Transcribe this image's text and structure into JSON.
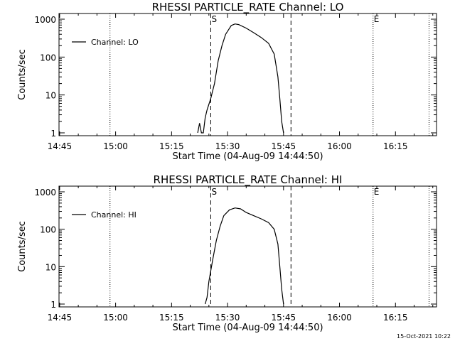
{
  "footer": {
    "timestamp": "15-Oct-2021 10:22"
  },
  "chart_data": [
    {
      "type": "line",
      "title": "RHESSI PARTICLE_RATE Channel: LO",
      "xlabel": "Start Time (04-Aug-09 14:44:50)",
      "ylabel": "Counts/sec",
      "xlim": [
        "14:44:50",
        "16:26:00"
      ],
      "ylim": [
        1,
        1000
      ],
      "yscale": "log",
      "xticks": [
        "14:45",
        "15:00",
        "15:15",
        "15:30",
        "15:45",
        "16:00",
        "16:15"
      ],
      "yticks": [
        "1",
        "10",
        "100",
        "1000"
      ],
      "legend": {
        "position": "top-left",
        "label": "Channel: LO"
      },
      "markers": [
        {
          "time": "15:25:30",
          "style": "dashed",
          "label": "S"
        },
        {
          "time": "15:47:00",
          "style": "dashed",
          "label": ""
        },
        {
          "time": "14:58:30",
          "style": "dotted",
          "label": ""
        },
        {
          "time": "16:09:00",
          "style": "dotted",
          "label": "E"
        },
        {
          "time": "16:24:00",
          "style": "dotted",
          "label": ""
        }
      ],
      "series": [
        {
          "name": "Channel: LO",
          "points": [
            [
              "15:22:00",
              1
            ],
            [
              "15:22:30",
              1.8
            ],
            [
              "15:23:00",
              1
            ],
            [
              "15:23:30",
              1
            ],
            [
              "15:24:00",
              2.5
            ],
            [
              "15:24:30",
              4
            ],
            [
              "15:25:30",
              8
            ],
            [
              "15:26:30",
              20
            ],
            [
              "15:27:30",
              80
            ],
            [
              "15:28:30",
              200
            ],
            [
              "15:29:30",
              400
            ],
            [
              "15:31:00",
              680
            ],
            [
              "15:32:00",
              750
            ],
            [
              "15:33:00",
              720
            ],
            [
              "15:35:00",
              580
            ],
            [
              "15:37:00",
              440
            ],
            [
              "15:39:00",
              330
            ],
            [
              "15:41:00",
              230
            ],
            [
              "15:42:30",
              120
            ],
            [
              "15:43:30",
              30
            ],
            [
              "15:44:00",
              8
            ],
            [
              "15:44:30",
              2
            ],
            [
              "15:45:00",
              1
            ]
          ]
        }
      ]
    },
    {
      "type": "line",
      "title": "RHESSI PARTICLE_RATE Channel: HI",
      "xlabel": "Start Time (04-Aug-09 14:44:50)",
      "ylabel": "Counts/sec",
      "xlim": [
        "14:44:50",
        "16:26:00"
      ],
      "ylim": [
        1,
        1000
      ],
      "yscale": "log",
      "xticks": [
        "14:45",
        "15:00",
        "15:15",
        "15:30",
        "15:45",
        "16:00",
        "16:15"
      ],
      "yticks": [
        "1",
        "10",
        "100",
        "1000"
      ],
      "legend": {
        "position": "top-left",
        "label": "Channel: HI"
      },
      "markers": [
        {
          "time": "15:25:30",
          "style": "dashed",
          "label": "S"
        },
        {
          "time": "15:47:00",
          "style": "dashed",
          "label": ""
        },
        {
          "time": "14:58:30",
          "style": "dotted",
          "label": ""
        },
        {
          "time": "16:09:00",
          "style": "dotted",
          "label": "E"
        },
        {
          "time": "16:24:00",
          "style": "dotted",
          "label": ""
        }
      ],
      "series": [
        {
          "name": "Channel: HI",
          "points": [
            [
              "15:24:00",
              1
            ],
            [
              "15:24:30",
              1.5
            ],
            [
              "15:25:00",
              4
            ],
            [
              "15:26:00",
              15
            ],
            [
              "15:27:00",
              50
            ],
            [
              "15:28:00",
              120
            ],
            [
              "15:29:00",
              230
            ],
            [
              "15:30:30",
              330
            ],
            [
              "15:32:00",
              370
            ],
            [
              "15:33:30",
              350
            ],
            [
              "15:35:00",
              280
            ],
            [
              "15:37:00",
              230
            ],
            [
              "15:39:00",
              190
            ],
            [
              "15:41:00",
              150
            ],
            [
              "15:42:30",
              100
            ],
            [
              "15:43:30",
              40
            ],
            [
              "15:44:00",
              10
            ],
            [
              "15:44:30",
              2.5
            ],
            [
              "15:45:00",
              1
            ]
          ]
        }
      ]
    }
  ]
}
